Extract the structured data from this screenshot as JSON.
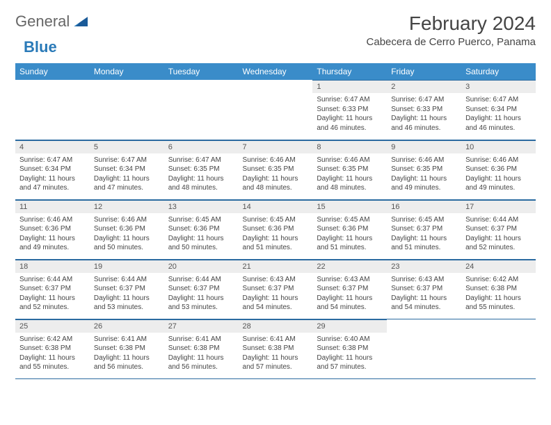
{
  "logo": {
    "part1": "General",
    "part2": "Blue"
  },
  "title": "February 2024",
  "location": "Cabecera de Cerro Puerco, Panama",
  "colors": {
    "header_bg": "#3a8cc9",
    "header_text": "#ffffff",
    "daynum_bg": "#ededed",
    "border": "#2a6aa0",
    "text": "#444444",
    "logo_blue": "#2a7ab8"
  },
  "day_headers": [
    "Sunday",
    "Monday",
    "Tuesday",
    "Wednesday",
    "Thursday",
    "Friday",
    "Saturday"
  ],
  "weeks": [
    [
      null,
      null,
      null,
      null,
      {
        "n": "1",
        "sr": "6:47 AM",
        "ss": "6:33 PM",
        "dl": "11 hours and 46 minutes."
      },
      {
        "n": "2",
        "sr": "6:47 AM",
        "ss": "6:33 PM",
        "dl": "11 hours and 46 minutes."
      },
      {
        "n": "3",
        "sr": "6:47 AM",
        "ss": "6:34 PM",
        "dl": "11 hours and 46 minutes."
      }
    ],
    [
      {
        "n": "4",
        "sr": "6:47 AM",
        "ss": "6:34 PM",
        "dl": "11 hours and 47 minutes."
      },
      {
        "n": "5",
        "sr": "6:47 AM",
        "ss": "6:34 PM",
        "dl": "11 hours and 47 minutes."
      },
      {
        "n": "6",
        "sr": "6:47 AM",
        "ss": "6:35 PM",
        "dl": "11 hours and 48 minutes."
      },
      {
        "n": "7",
        "sr": "6:46 AM",
        "ss": "6:35 PM",
        "dl": "11 hours and 48 minutes."
      },
      {
        "n": "8",
        "sr": "6:46 AM",
        "ss": "6:35 PM",
        "dl": "11 hours and 48 minutes."
      },
      {
        "n": "9",
        "sr": "6:46 AM",
        "ss": "6:35 PM",
        "dl": "11 hours and 49 minutes."
      },
      {
        "n": "10",
        "sr": "6:46 AM",
        "ss": "6:36 PM",
        "dl": "11 hours and 49 minutes."
      }
    ],
    [
      {
        "n": "11",
        "sr": "6:46 AM",
        "ss": "6:36 PM",
        "dl": "11 hours and 49 minutes."
      },
      {
        "n": "12",
        "sr": "6:46 AM",
        "ss": "6:36 PM",
        "dl": "11 hours and 50 minutes."
      },
      {
        "n": "13",
        "sr": "6:45 AM",
        "ss": "6:36 PM",
        "dl": "11 hours and 50 minutes."
      },
      {
        "n": "14",
        "sr": "6:45 AM",
        "ss": "6:36 PM",
        "dl": "11 hours and 51 minutes."
      },
      {
        "n": "15",
        "sr": "6:45 AM",
        "ss": "6:36 PM",
        "dl": "11 hours and 51 minutes."
      },
      {
        "n": "16",
        "sr": "6:45 AM",
        "ss": "6:37 PM",
        "dl": "11 hours and 51 minutes."
      },
      {
        "n": "17",
        "sr": "6:44 AM",
        "ss": "6:37 PM",
        "dl": "11 hours and 52 minutes."
      }
    ],
    [
      {
        "n": "18",
        "sr": "6:44 AM",
        "ss": "6:37 PM",
        "dl": "11 hours and 52 minutes."
      },
      {
        "n": "19",
        "sr": "6:44 AM",
        "ss": "6:37 PM",
        "dl": "11 hours and 53 minutes."
      },
      {
        "n": "20",
        "sr": "6:44 AM",
        "ss": "6:37 PM",
        "dl": "11 hours and 53 minutes."
      },
      {
        "n": "21",
        "sr": "6:43 AM",
        "ss": "6:37 PM",
        "dl": "11 hours and 54 minutes."
      },
      {
        "n": "22",
        "sr": "6:43 AM",
        "ss": "6:37 PM",
        "dl": "11 hours and 54 minutes."
      },
      {
        "n": "23",
        "sr": "6:43 AM",
        "ss": "6:37 PM",
        "dl": "11 hours and 54 minutes."
      },
      {
        "n": "24",
        "sr": "6:42 AM",
        "ss": "6:38 PM",
        "dl": "11 hours and 55 minutes."
      }
    ],
    [
      {
        "n": "25",
        "sr": "6:42 AM",
        "ss": "6:38 PM",
        "dl": "11 hours and 55 minutes."
      },
      {
        "n": "26",
        "sr": "6:41 AM",
        "ss": "6:38 PM",
        "dl": "11 hours and 56 minutes."
      },
      {
        "n": "27",
        "sr": "6:41 AM",
        "ss": "6:38 PM",
        "dl": "11 hours and 56 minutes."
      },
      {
        "n": "28",
        "sr": "6:41 AM",
        "ss": "6:38 PM",
        "dl": "11 hours and 57 minutes."
      },
      {
        "n": "29",
        "sr": "6:40 AM",
        "ss": "6:38 PM",
        "dl": "11 hours and 57 minutes."
      },
      null,
      null
    ]
  ],
  "labels": {
    "sunrise": "Sunrise:",
    "sunset": "Sunset:",
    "daylight": "Daylight:"
  }
}
